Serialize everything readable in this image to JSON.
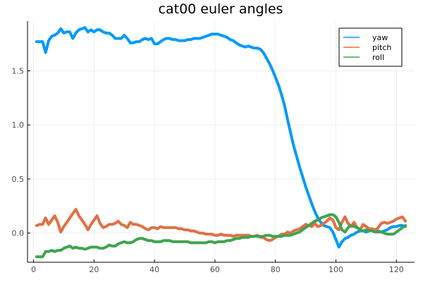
{
  "chart_data": {
    "type": "line",
    "title": "cat00 euler angles",
    "xlabel": "",
    "ylabel": "",
    "xlim": [
      -2,
      126
    ],
    "ylim": [
      -0.27,
      1.96
    ],
    "xticks": [
      0,
      20,
      40,
      60,
      80,
      100,
      120
    ],
    "yticks": [
      0.0,
      0.5,
      1.0,
      1.5
    ],
    "ytick_labels": [
      "0.0",
      "0.5",
      "1.0",
      "1.5"
    ],
    "grid": true,
    "legend_position": "top-right",
    "series": [
      {
        "name": "yaw",
        "color": "#009AFA",
        "x": [
          1,
          2,
          3,
          4,
          5,
          6,
          7,
          8,
          9,
          10,
          11,
          12,
          13,
          14,
          15,
          16,
          17,
          18,
          19,
          20,
          21,
          22,
          23,
          24,
          25,
          26,
          27,
          28,
          29,
          30,
          31,
          32,
          33,
          34,
          35,
          36,
          37,
          38,
          39,
          40,
          41,
          42,
          43,
          44,
          45,
          46,
          47,
          48,
          49,
          50,
          51,
          52,
          53,
          54,
          55,
          56,
          57,
          58,
          59,
          60,
          61,
          62,
          63,
          64,
          65,
          66,
          67,
          68,
          69,
          70,
          71,
          72,
          73,
          74,
          75,
          76,
          77,
          78,
          79,
          80,
          81,
          82,
          83,
          84,
          85,
          86,
          87,
          88,
          89,
          90,
          91,
          92,
          93,
          94,
          95,
          96,
          97,
          98,
          99,
          100,
          101,
          102,
          103,
          104,
          105,
          106,
          107,
          108,
          109,
          110,
          111,
          112,
          113,
          114,
          115,
          116,
          117,
          118,
          119,
          120,
          121,
          122,
          123
        ],
        "y": [
          1.77,
          1.77,
          1.77,
          1.67,
          1.78,
          1.82,
          1.83,
          1.85,
          1.89,
          1.85,
          1.86,
          1.86,
          1.8,
          1.85,
          1.88,
          1.89,
          1.9,
          1.86,
          1.88,
          1.86,
          1.88,
          1.88,
          1.86,
          1.85,
          1.85,
          1.83,
          1.8,
          1.8,
          1.8,
          1.83,
          1.8,
          1.76,
          1.76,
          1.77,
          1.77,
          1.79,
          1.8,
          1.79,
          1.8,
          1.75,
          1.75,
          1.77,
          1.79,
          1.8,
          1.8,
          1.79,
          1.79,
          1.78,
          1.78,
          1.78,
          1.79,
          1.79,
          1.8,
          1.8,
          1.8,
          1.81,
          1.82,
          1.83,
          1.84,
          1.84,
          1.84,
          1.83,
          1.82,
          1.81,
          1.79,
          1.78,
          1.76,
          1.74,
          1.73,
          1.72,
          1.73,
          1.72,
          1.71,
          1.71,
          1.7,
          1.67,
          1.62,
          1.57,
          1.51,
          1.44,
          1.37,
          1.28,
          1.18,
          1.05,
          0.93,
          0.81,
          0.71,
          0.61,
          0.52,
          0.43,
          0.35,
          0.27,
          0.2,
          0.14,
          0.1,
          0.07,
          0.06,
          0.05,
          0.01,
          -0.06,
          -0.13,
          -0.08,
          -0.05,
          -0.04,
          -0.02,
          -0.01,
          0.01,
          0.02,
          0.02,
          0.01,
          0.02,
          0.02,
          0.03,
          0.02,
          0.01,
          0.02,
          0.03,
          0.05,
          0.06,
          0.06,
          0.07,
          0.07,
          0.06
        ]
      },
      {
        "name": "pitch",
        "color": "#E26F46",
        "x": [
          1,
          2,
          3,
          4,
          5,
          6,
          7,
          8,
          9,
          10,
          11,
          12,
          13,
          14,
          15,
          16,
          17,
          18,
          19,
          20,
          21,
          22,
          23,
          24,
          25,
          26,
          27,
          28,
          29,
          30,
          31,
          32,
          33,
          34,
          35,
          36,
          37,
          38,
          39,
          40,
          41,
          42,
          43,
          44,
          45,
          46,
          47,
          48,
          49,
          50,
          51,
          52,
          53,
          54,
          55,
          56,
          57,
          58,
          59,
          60,
          61,
          62,
          63,
          64,
          65,
          66,
          67,
          68,
          69,
          70,
          71,
          72,
          73,
          74,
          75,
          76,
          77,
          78,
          79,
          80,
          81,
          82,
          83,
          84,
          85,
          86,
          87,
          88,
          89,
          90,
          91,
          92,
          93,
          94,
          95,
          96,
          97,
          98,
          99,
          100,
          101,
          102,
          103,
          104,
          105,
          106,
          107,
          108,
          109,
          110,
          111,
          112,
          113,
          114,
          115,
          116,
          117,
          118,
          119,
          120,
          121,
          122,
          123
        ],
        "y": [
          0.07,
          0.08,
          0.08,
          0.14,
          0.08,
          0.12,
          0.16,
          0.1,
          0.01,
          0.06,
          0.1,
          0.14,
          0.18,
          0.22,
          0.16,
          0.12,
          0.08,
          0.03,
          0.08,
          0.12,
          0.16,
          0.09,
          0.05,
          0.06,
          0.08,
          0.08,
          0.09,
          0.11,
          0.08,
          0.07,
          0.05,
          0.1,
          0.08,
          0.08,
          0.07,
          0.06,
          0.04,
          0.03,
          0.05,
          0.05,
          0.04,
          0.06,
          0.05,
          0.05,
          0.05,
          0.05,
          0.05,
          0.04,
          0.04,
          0.03,
          0.03,
          0.02,
          0.02,
          0.01,
          0.0,
          0.0,
          -0.01,
          -0.01,
          -0.01,
          -0.02,
          -0.02,
          -0.01,
          -0.02,
          -0.02,
          -0.02,
          -0.03,
          -0.02,
          -0.02,
          -0.02,
          -0.02,
          -0.02,
          -0.03,
          -0.03,
          -0.02,
          -0.04,
          -0.04,
          -0.06,
          -0.07,
          -0.06,
          -0.04,
          -0.03,
          -0.01,
          -0.01,
          0.01,
          0.0,
          0.02,
          0.03,
          0.04,
          0.06,
          0.08,
          0.07,
          0.06,
          0.09,
          0.06,
          0.07,
          0.09,
          0.11,
          0.14,
          0.12,
          0.05,
          0.03,
          0.1,
          0.15,
          0.09,
          0.06,
          0.1,
          0.05,
          0.03,
          0.08,
          0.06,
          0.04,
          0.04,
          0.03,
          0.05,
          0.09,
          0.1,
          0.09,
          0.1,
          0.11,
          0.13,
          0.14,
          0.15,
          0.11
        ]
      },
      {
        "name": "roll",
        "color": "#3EA44E",
        "x": [
          1,
          2,
          3,
          4,
          5,
          6,
          7,
          8,
          9,
          10,
          11,
          12,
          13,
          14,
          15,
          16,
          17,
          18,
          19,
          20,
          21,
          22,
          23,
          24,
          25,
          26,
          27,
          28,
          29,
          30,
          31,
          32,
          33,
          34,
          35,
          36,
          37,
          38,
          39,
          40,
          41,
          42,
          43,
          44,
          45,
          46,
          47,
          48,
          49,
          50,
          51,
          52,
          53,
          54,
          55,
          56,
          57,
          58,
          59,
          60,
          61,
          62,
          63,
          64,
          65,
          66,
          67,
          68,
          69,
          70,
          71,
          72,
          73,
          74,
          75,
          76,
          77,
          78,
          79,
          80,
          81,
          82,
          83,
          84,
          85,
          86,
          87,
          88,
          89,
          90,
          91,
          92,
          93,
          94,
          95,
          96,
          97,
          98,
          99,
          100,
          101,
          102,
          103,
          104,
          105,
          106,
          107,
          108,
          109,
          110,
          111,
          112,
          113,
          114,
          115,
          116,
          117,
          118,
          119,
          120,
          121,
          122,
          123
        ],
        "y": [
          -0.22,
          -0.22,
          -0.22,
          -0.17,
          -0.17,
          -0.16,
          -0.17,
          -0.16,
          -0.16,
          -0.14,
          -0.13,
          -0.12,
          -0.14,
          -0.13,
          -0.14,
          -0.14,
          -0.15,
          -0.14,
          -0.13,
          -0.13,
          -0.13,
          -0.14,
          -0.14,
          -0.13,
          -0.11,
          -0.12,
          -0.12,
          -0.1,
          -0.09,
          -0.08,
          -0.09,
          -0.09,
          -0.08,
          -0.06,
          -0.05,
          -0.05,
          -0.06,
          -0.07,
          -0.07,
          -0.08,
          -0.08,
          -0.08,
          -0.07,
          -0.07,
          -0.07,
          -0.08,
          -0.08,
          -0.08,
          -0.08,
          -0.08,
          -0.08,
          -0.09,
          -0.09,
          -0.09,
          -0.09,
          -0.09,
          -0.09,
          -0.08,
          -0.08,
          -0.09,
          -0.08,
          -0.08,
          -0.08,
          -0.07,
          -0.07,
          -0.06,
          -0.05,
          -0.05,
          -0.04,
          -0.04,
          -0.04,
          -0.03,
          -0.03,
          -0.03,
          -0.03,
          -0.03,
          -0.02,
          -0.02,
          -0.03,
          -0.03,
          -0.03,
          -0.03,
          -0.02,
          -0.02,
          -0.02,
          -0.01,
          0.0,
          0.01,
          0.03,
          0.05,
          0.07,
          0.09,
          0.11,
          0.12,
          0.14,
          0.15,
          0.16,
          0.17,
          0.17,
          0.15,
          0.1,
          0.03,
          0.01,
          0.05,
          0.07,
          0.06,
          0.05,
          0.03,
          0.02,
          0.03,
          0.02,
          0.02,
          0.01,
          0.01,
          0.01,
          0.0,
          -0.01,
          -0.01,
          -0.01,
          0.01,
          0.03,
          0.05,
          0.07
        ]
      }
    ]
  }
}
